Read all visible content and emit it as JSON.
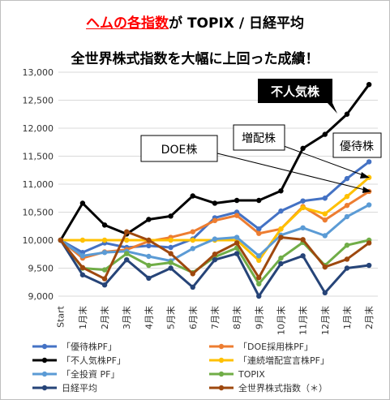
{
  "title_line1_highlight": "ヘムの各指数",
  "title_line1_rest": "が TOPIX / 日経平均",
  "title_line2": "全世界株式指数を大幅に上回った成績！",
  "chart_data": {
    "type": "line",
    "categories": [
      "Start",
      "1月末",
      "2月末",
      "3月末",
      "4月末",
      "5月末",
      "6月末",
      "7月末",
      "8月末",
      "9月末",
      "10月末",
      "11月末",
      "12月末",
      "1月末",
      "2月末"
    ],
    "ylim": [
      9000,
      13000
    ],
    "yticks": [
      9000,
      9500,
      10000,
      10500,
      11000,
      11500,
      12000,
      12500,
      13000
    ],
    "ytick_labels": [
      "9,000",
      "9,500",
      "10,000",
      "10,500",
      "11,000",
      "11,500",
      "12,000",
      "12,500",
      "13,000"
    ],
    "grid": true,
    "legend_position": "bottom",
    "series": [
      {
        "name": "「優待株PF」",
        "color": "#4472c4",
        "width": 3,
        "values": [
          10000,
          9780,
          9950,
          9870,
          9900,
          9870,
          10020,
          10400,
          10500,
          10200,
          10520,
          10700,
          10750,
          11100,
          11400
        ]
      },
      {
        "name": "「DOE採用株PF」",
        "color": "#ed7d31",
        "width": 3,
        "values": [
          10000,
          9680,
          9790,
          9830,
          9980,
          10050,
          10150,
          10350,
          10440,
          10120,
          10200,
          10600,
          10360,
          10620,
          10870
        ]
      },
      {
        "name": "「不人気株PF」",
        "color": "#000000",
        "width": 3,
        "values": [
          10000,
          10660,
          10270,
          10110,
          10370,
          10430,
          10790,
          10660,
          10710,
          10710,
          10880,
          11640,
          11890,
          12250,
          12780
        ]
      },
      {
        "name": "「連続増配宣言株PF」",
        "color": "#ffc000",
        "width": 3,
        "values": [
          10000,
          10000,
          10000,
          10000,
          10000,
          10000,
          10000,
          10000,
          10000,
          9640,
          10200,
          10580,
          10470,
          10780,
          11120
        ]
      },
      {
        "name": "「全投資 PF」",
        "color": "#5b9bd5",
        "width": 3,
        "values": [
          10000,
          9720,
          9780,
          9800,
          9710,
          9630,
          9850,
          10020,
          10050,
          9720,
          10090,
          10220,
          10080,
          10420,
          10630
        ]
      },
      {
        "name": "TOPIX",
        "color": "#70ad47",
        "width": 3,
        "values": [
          10000,
          9500,
          9470,
          9760,
          9550,
          9600,
          9420,
          9700,
          9860,
          9220,
          9680,
          9960,
          9550,
          9910,
          10000
        ]
      },
      {
        "name": "日経平均",
        "color": "#264478",
        "width": 3,
        "values": [
          10000,
          9380,
          9200,
          9650,
          9320,
          9500,
          9160,
          9650,
          9760,
          9000,
          9580,
          9720,
          9060,
          9500,
          9550
        ]
      },
      {
        "name": "全世界株式指数（＊）",
        "color": "#9e480e",
        "width": 3,
        "values": [
          10000,
          9510,
          9310,
          10150,
          10000,
          9760,
          9400,
          9750,
          9950,
          9330,
          10050,
          10010,
          9520,
          9660,
          9950
        ]
      }
    ],
    "annotations": [
      {
        "text": "不人気株",
        "style": "dark"
      },
      {
        "text": "DOE株",
        "style": "box"
      },
      {
        "text": "増配株",
        "style": "box"
      },
      {
        "text": "優待株",
        "style": "box"
      }
    ]
  }
}
